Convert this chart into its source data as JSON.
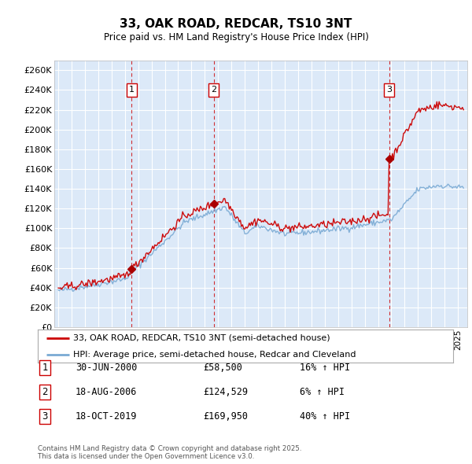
{
  "title": "33, OAK ROAD, REDCAR, TS10 3NT",
  "subtitle": "Price paid vs. HM Land Registry's House Price Index (HPI)",
  "ylabel_ticks": [
    "£0",
    "£20K",
    "£40K",
    "£60K",
    "£80K",
    "£100K",
    "£120K",
    "£140K",
    "£160K",
    "£180K",
    "£200K",
    "£220K",
    "£240K",
    "£260K"
  ],
  "ytick_values": [
    0,
    20000,
    40000,
    60000,
    80000,
    100000,
    120000,
    140000,
    160000,
    180000,
    200000,
    220000,
    240000,
    260000
  ],
  "ylim": [
    0,
    270000
  ],
  "sale_prices": [
    58500,
    124529,
    169950
  ],
  "sale_labels": [
    "1",
    "2",
    "3"
  ],
  "sale_label_display": [
    "30-JUN-2000",
    "18-AUG-2006",
    "18-OCT-2019"
  ],
  "sale_price_display": [
    "£58,500",
    "£124,529",
    "£169,950"
  ],
  "sale_hpi_display": [
    "16% ↑ HPI",
    "6% ↑ HPI",
    "40% ↑ HPI"
  ],
  "legend_line1": "33, OAK ROAD, REDCAR, TS10 3NT (semi-detached house)",
  "legend_line2": "HPI: Average price, semi-detached house, Redcar and Cleveland",
  "footnote": "Contains HM Land Registry data © Crown copyright and database right 2025.\nThis data is licensed under the Open Government Licence v3.0.",
  "bg_color": "#dce9f8",
  "grid_color": "#ffffff",
  "sale_line_color": "#cc0000",
  "hpi_line_color": "#7aaad4",
  "dashed_line_color": "#cc0000",
  "marker_color": "#aa0000",
  "box_label_color": "#cc0000"
}
